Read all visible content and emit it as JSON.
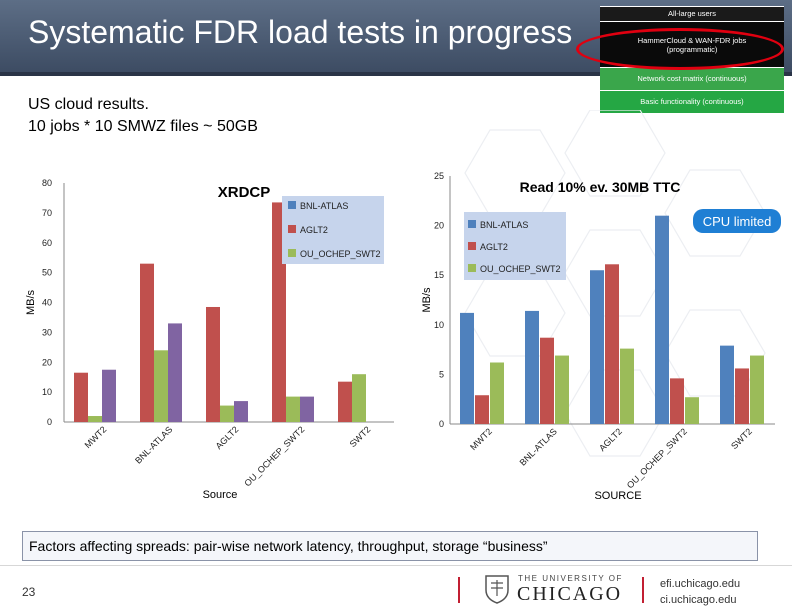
{
  "slide": {
    "title": "Systematic FDR load tests in progress",
    "subtitle_line1": "US cloud results.",
    "subtitle_line2": "10 jobs * 10 SMWZ files ~ 50GB",
    "factors_text": "Factors affecting spreads: pair-wise network latency, throughput, storage “business”",
    "slide_number": "23",
    "footer_university_line1": "THE UNIVERSITY OF",
    "footer_university_line2": "CHICAGO",
    "footer_url1": "efi.uchicago.edu",
    "footer_url2": "ci.uchicago.edu",
    "cpu_limited_label": "CPU limited"
  },
  "pyramid": {
    "top": "All-large users",
    "hammercloud": "HammerCloud & WAN-FDR jobs (programmatic)",
    "network": "Network cost matrix (continuous)",
    "basic": "Basic functionality (continuous)"
  },
  "colors": {
    "bnl": "#4f81bd",
    "aglt2": "#c0504d",
    "ou": "#9bbb59",
    "mwt2": "#8064a2",
    "legend_bg": "#c6d4ec",
    "cpu_limited": "#1f7fd4",
    "title_bar": "#4a5a73",
    "highlight": "#e00010"
  },
  "chart_data": [
    {
      "type": "bar",
      "title": "XRDCP",
      "xlabel": "Source",
      "ylabel": "MB/s",
      "ylim": [
        0,
        80
      ],
      "yticks": [
        0,
        10,
        20,
        30,
        40,
        50,
        60,
        70,
        80
      ],
      "categories": [
        "MWT2",
        "BNL-ATLAS",
        "AGLT2",
        "OU_OCHEP_SWT2",
        "SWT2"
      ],
      "series": [
        {
          "name": "BNL-ATLAS",
          "values": [
            null,
            null,
            null,
            null,
            null
          ]
        },
        {
          "name": "AGLT2",
          "values": [
            16.5,
            53,
            38.5,
            73.5,
            13.5
          ]
        },
        {
          "name": "OU_OCHEP_SWT2",
          "values": [
            2,
            24,
            5.5,
            8.5,
            16
          ]
        },
        {
          "name": "",
          "values": [
            17.5,
            33,
            7,
            8.5,
            null
          ]
        }
      ],
      "legend": [
        "BNL-ATLAS",
        "AGLT2",
        "OU_OCHEP_SWT2"
      ],
      "legend_position": "top-right",
      "grid": false
    },
    {
      "type": "bar",
      "title": "Read 10% ev. 30MB TTC",
      "xlabel": "SOURCE",
      "ylabel": "MB/s",
      "ylim": [
        0,
        25
      ],
      "yticks": [
        0,
        5,
        10,
        15,
        20,
        25
      ],
      "categories": [
        "MWT2",
        "BNL-ATLAS",
        "AGLT2",
        "OU_OCHEP_SWT2",
        "SWT2"
      ],
      "series": [
        {
          "name": "BNL-ATLAS",
          "values": [
            11.2,
            11.4,
            15.5,
            21,
            7.9
          ]
        },
        {
          "name": "AGLT2",
          "values": [
            2.9,
            8.7,
            16.1,
            4.6,
            5.6
          ]
        },
        {
          "name": "OU_OCHEP_SWT2",
          "values": [
            6.2,
            6.9,
            7.6,
            2.7,
            6.9
          ]
        }
      ],
      "legend": [
        "BNL-ATLAS",
        "AGLT2",
        "OU_OCHEP_SWT2"
      ],
      "legend_position": "top-left",
      "grid": false
    }
  ]
}
